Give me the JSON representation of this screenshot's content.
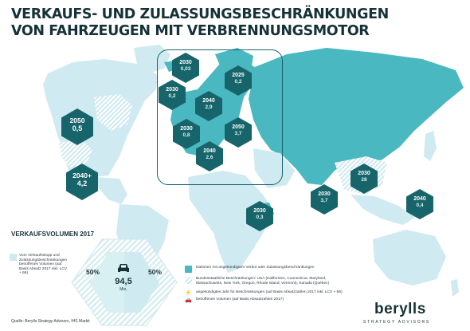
{
  "title": {
    "line1": "VERKAUFS- UND ZULASSUNGSBESCHRÄNKUNGEN",
    "line2": "VON FAHRZEUGEN MIT VERBRENNUNGSMOTOR"
  },
  "colors": {
    "ban_country": "#4ab8c0",
    "land": "#cfeaf0",
    "hexagon": "#17656b",
    "title": "#163239"
  },
  "markers": [
    {
      "id": "canada",
      "year": "2050",
      "volume": "0,5"
    },
    {
      "id": "usa",
      "year": "2040+",
      "volume": "4,2"
    },
    {
      "id": "norway",
      "year": "2025",
      "volume": "0,2"
    },
    {
      "id": "iceland",
      "year": "2030",
      "volume": "0,03"
    },
    {
      "id": "ireland",
      "year": "2030",
      "volume": "0,2"
    },
    {
      "id": "uk",
      "year": "2040",
      "volume": "2,9"
    },
    {
      "id": "netherlands",
      "year": "2030",
      "volume": "0,8"
    },
    {
      "id": "germany",
      "year": "2050",
      "volume": "3,7"
    },
    {
      "id": "france",
      "year": "2040",
      "volume": "2,6"
    },
    {
      "id": "india",
      "year": "2030",
      "volume": "3,7"
    },
    {
      "id": "china",
      "year": "2030",
      "volume": "28"
    },
    {
      "id": "ethiopia",
      "year": "2030",
      "volume": "0,3"
    },
    {
      "id": "taiwan",
      "year": "2040",
      "volume": "0,4"
    }
  ],
  "sales": {
    "title": "VERKAUFSVOLUMEN 2017",
    "left_pct": "50%",
    "right_pct": "50%",
    "total": "94,5",
    "unit": "Mio."
  },
  "legend": {
    "affected": "Vom Verkaufsstopp und Zulassungsbeschränkungen betroffenes Volumen (auf Basis Absatz 2017 inkl. LCV + 66)",
    "nations": "Nationen mit angekündigtem Verbot oder Zulassungsbeschränkungen",
    "federal": "Bundesstaatliche Beschränkungen: USA (Kalifornien, Connecticut, Maryland, Massachusetts, New York, Oregon, Rhode Island, Vermont), Kanada (Québec)",
    "year": "angekündigtes Jahr für Beschränkungen (auf Basis Absatzzahlen 2017 inkl. LCV + 66)",
    "volume": "betroffenes Volumen (auf Basis Absatzzahlen 2017)"
  },
  "source": "Quelle: Berylls Strategy Advisors, IHS Markit",
  "logo": {
    "name": "berylls",
    "tagline": "STRATEGY ADVISORS"
  }
}
